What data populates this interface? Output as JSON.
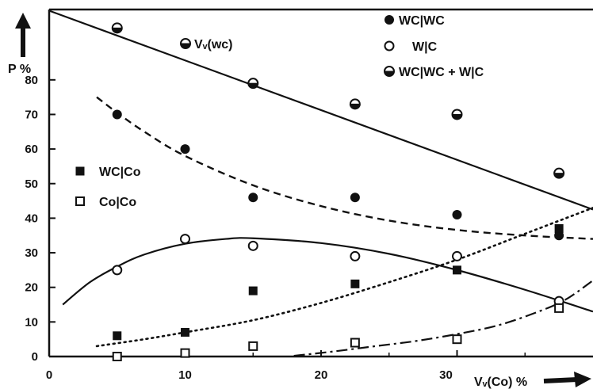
{
  "chart_data": {
    "type": "scatter",
    "title": "",
    "ylabel": "P %",
    "xlabel": "Vᵥ(Co) %",
    "xlim": [
      0,
      40
    ],
    "ylim": [
      0,
      100
    ],
    "x_ticks": [
      0,
      10,
      20,
      30
    ],
    "y_ticks": [
      0,
      10,
      20,
      30,
      40,
      50,
      60,
      70,
      80
    ],
    "grid": false,
    "legend_position": "top-right",
    "legend_secondary_position": "left-middle",
    "annotation": {
      "text": "Vᵥ(wc)"
    },
    "series": [
      {
        "name": "WC|WC",
        "marker": "filled-circle",
        "x": [
          5,
          10,
          15,
          22.5,
          30,
          37.5
        ],
        "y": [
          70,
          60,
          46,
          46,
          41,
          35
        ]
      },
      {
        "name": "W|C",
        "marker": "open-circle",
        "x": [
          5,
          10,
          15,
          22.5,
          30,
          37.5
        ],
        "y": [
          25,
          34,
          32,
          29,
          29,
          16
        ]
      },
      {
        "name": "WC|WC + W|C",
        "marker": "half-circle",
        "x": [
          5,
          15,
          22.5,
          30,
          37.5
        ],
        "y": [
          95,
          79,
          73,
          70,
          53
        ]
      },
      {
        "name": "WC|Co",
        "marker": "filled-square",
        "x": [
          5,
          10,
          15,
          22.5,
          30,
          37.5
        ],
        "y": [
          6,
          7,
          19,
          21,
          25,
          37
        ]
      },
      {
        "name": "Co|Co",
        "marker": "open-square",
        "x": [
          5,
          10,
          15,
          22.5,
          30,
          37.5
        ],
        "y": [
          0,
          1,
          3,
          4,
          5,
          14
        ]
      }
    ],
    "curves": [
      {
        "style": "solid",
        "x": [
          0,
          40
        ],
        "y": [
          100,
          42.5
        ]
      },
      {
        "style": "dashed",
        "x": [
          3.5,
          5,
          7,
          10,
          15,
          20,
          25,
          30,
          35,
          40
        ],
        "y": [
          75,
          70.5,
          65,
          58,
          49.5,
          43.5,
          39.3,
          36.6,
          35,
          34
        ]
      },
      {
        "style": "solid",
        "x": [
          1,
          3,
          5,
          7,
          10,
          13,
          15,
          20,
          25,
          30,
          35,
          40
        ],
        "y": [
          15,
          21.5,
          26,
          29.5,
          32.6,
          34,
          34.2,
          32.8,
          29.7,
          25,
          19.3,
          13
        ]
      },
      {
        "style": "dotted",
        "x": [
          3.5,
          7,
          10,
          15,
          20,
          25,
          30,
          35,
          40
        ],
        "y": [
          3,
          5,
          7,
          10.5,
          15.5,
          21.5,
          28,
          35.5,
          43
        ]
      },
      {
        "style": "dash-dot",
        "x": [
          18,
          21,
          24,
          27,
          30,
          33,
          36,
          38,
          40
        ],
        "y": [
          0.2,
          1.5,
          3,
          4.5,
          6.5,
          9,
          13,
          16.5,
          22
        ]
      }
    ]
  }
}
